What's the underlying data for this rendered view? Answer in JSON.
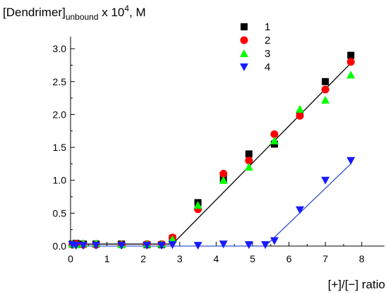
{
  "chart_data": {
    "type": "scatter",
    "title": "",
    "ylabel": {
      "main": "[Dendrimer]",
      "subscript": "unbound",
      "middle": " x 10",
      "superscript": "4",
      "suffix": ", M"
    },
    "xlabel": "[+]/[−] ratio",
    "xlim": [
      0,
      8.3
    ],
    "ylim": [
      0,
      3.2
    ],
    "xticks": [
      0,
      1,
      2,
      3,
      4,
      5,
      6,
      7,
      8
    ],
    "yticks": [
      0.0,
      0.5,
      1.0,
      1.5,
      2.0,
      2.5,
      3.0
    ],
    "ytick_labels": [
      "0.0",
      "0.5",
      "1.0",
      "1.5",
      "2.0",
      "2.5",
      "3.0"
    ],
    "grid": false,
    "legend_position": "top-right",
    "series": [
      {
        "name": "1",
        "marker": "square",
        "color": "#000000",
        "points": [
          [
            0.05,
            0.03
          ],
          [
            0.15,
            0.04
          ],
          [
            0.35,
            0.03
          ],
          [
            0.7,
            0.03
          ],
          [
            1.4,
            0.03
          ],
          [
            2.1,
            0.02
          ],
          [
            2.5,
            0.02
          ],
          [
            2.8,
            0.12
          ],
          [
            3.5,
            0.66
          ],
          [
            4.2,
            1.02
          ],
          [
            4.9,
            1.4
          ],
          [
            5.6,
            1.55
          ],
          [
            6.3,
            2.0
          ],
          [
            7.0,
            2.5
          ],
          [
            7.7,
            2.9
          ]
        ]
      },
      {
        "name": "2",
        "marker": "circle",
        "color": "#ff0000",
        "points": [
          [
            0.05,
            0.02
          ],
          [
            0.15,
            0.03
          ],
          [
            0.35,
            0.02
          ],
          [
            0.7,
            0.02
          ],
          [
            1.4,
            0.02
          ],
          [
            2.1,
            0.03
          ],
          [
            2.5,
            0.03
          ],
          [
            2.8,
            0.13
          ],
          [
            3.5,
            0.56
          ],
          [
            4.2,
            1.1
          ],
          [
            4.9,
            1.3
          ],
          [
            5.6,
            1.7
          ],
          [
            6.3,
            1.98
          ],
          [
            7.0,
            2.38
          ],
          [
            7.7,
            2.8
          ]
        ]
      },
      {
        "name": "3",
        "marker": "triangle-up",
        "color": "#00ff00",
        "points": [
          [
            0.05,
            0.03
          ],
          [
            0.15,
            0.02
          ],
          [
            0.35,
            0.04
          ],
          [
            0.7,
            0.04
          ],
          [
            1.4,
            0.02
          ],
          [
            2.1,
            0.03
          ],
          [
            2.5,
            0.03
          ],
          [
            2.8,
            0.1
          ],
          [
            3.5,
            0.62
          ],
          [
            4.2,
            1.0
          ],
          [
            4.9,
            1.2
          ],
          [
            5.6,
            1.6
          ],
          [
            6.3,
            2.08
          ],
          [
            7.0,
            2.22
          ],
          [
            7.7,
            2.6
          ]
        ]
      },
      {
        "name": "4",
        "marker": "triangle-down",
        "color": "#1a1aff",
        "points": [
          [
            0.05,
            0.02
          ],
          [
            0.15,
            0.01
          ],
          [
            0.35,
            0.01
          ],
          [
            0.7,
            0.01
          ],
          [
            1.4,
            0.01
          ],
          [
            2.1,
            0.01
          ],
          [
            2.5,
            0.01
          ],
          [
            2.8,
            0.02
          ],
          [
            3.5,
            0.01
          ],
          [
            4.2,
            0.03
          ],
          [
            4.9,
            0.02
          ],
          [
            5.35,
            0.02
          ],
          [
            5.6,
            0.08
          ],
          [
            6.3,
            0.55
          ],
          [
            7.0,
            1.0
          ],
          [
            7.7,
            1.3
          ]
        ]
      }
    ],
    "fit_lines": [
      {
        "color": "#000000",
        "points": [
          [
            0,
            0.03
          ],
          [
            2.8,
            0.03
          ],
          [
            7.7,
            2.78
          ]
        ]
      },
      {
        "color": "#3355cc",
        "points": [
          [
            0,
            0.0
          ],
          [
            5.35,
            0.0
          ],
          [
            7.7,
            1.25
          ]
        ]
      }
    ]
  }
}
